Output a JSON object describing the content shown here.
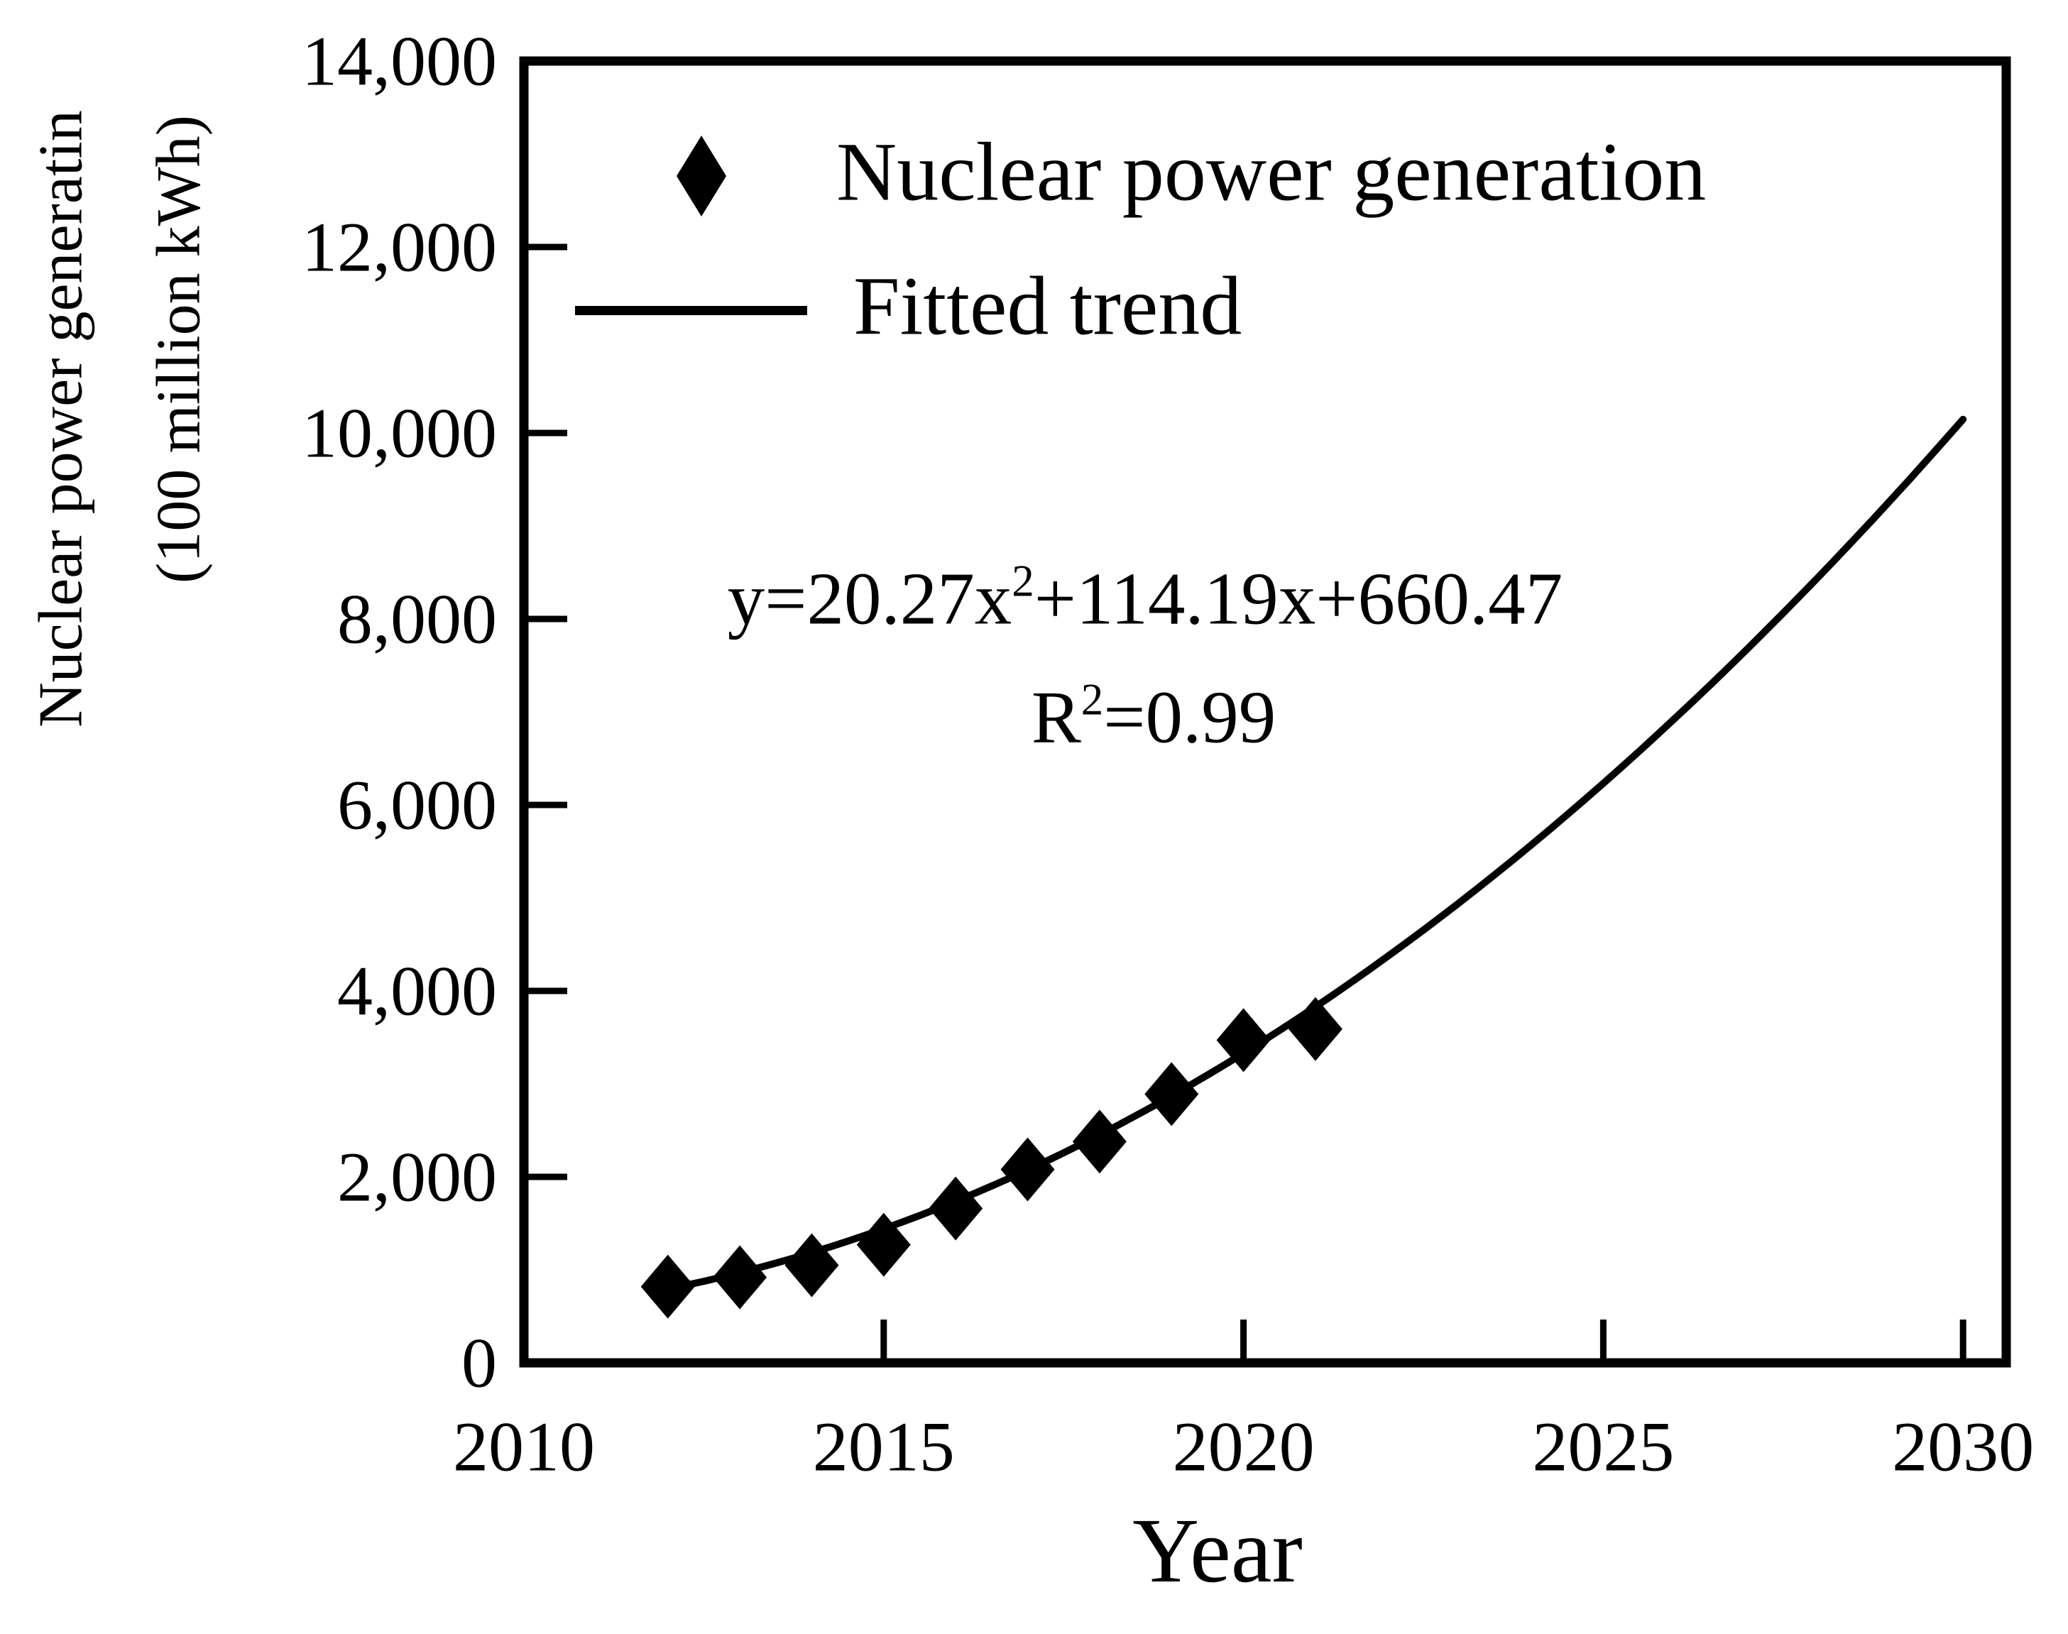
{
  "figure": {
    "background_color": "#ffffff",
    "ink_color": "#000000"
  },
  "legend": {
    "items": [
      {
        "label": "Nuclear power generation",
        "marker": "diamond"
      },
      {
        "label": "Fitted trend",
        "marker": "line"
      }
    ]
  },
  "equation": {
    "line1_base": "y=20.27x",
    "line1_sup": "2",
    "line1_rest": "+114.19x+660.47",
    "line2_base": "R",
    "line2_sup": "2",
    "line2_rest": "=0.99"
  },
  "chart_data": {
    "type": "scatter",
    "title": "",
    "xlabel": "Year",
    "ylabel_line1": "Nuclear power generatin",
    "ylabel_line2": "(100 million kWh)",
    "xlim": [
      2010,
      2030.6
    ],
    "ylim": [
      0,
      14000
    ],
    "xticks": [
      2010,
      2015,
      2020,
      2025,
      2030
    ],
    "yticks": [
      0,
      2000,
      4000,
      6000,
      8000,
      10000,
      12000,
      14000
    ],
    "grid": false,
    "legend_position": "upper-left-inside",
    "series": [
      {
        "name": "Nuclear power generation",
        "type": "scatter",
        "marker": "diamond",
        "color": "#000000",
        "x": [
          2012,
          2013,
          2014,
          2015,
          2016,
          2017,
          2018,
          2019,
          2020,
          2021
        ],
        "y": [
          820,
          920,
          1050,
          1270,
          1660,
          2080,
          2380,
          2890,
          3470,
          3590
        ]
      },
      {
        "name": "Fitted trend",
        "type": "line",
        "color": "#000000",
        "equation_text": "y=20.27x2+114.19x+660.47",
        "r_squared_text": "R2=0.99",
        "fit": {
          "a": 20.27,
          "b": 114.19,
          "c": 660.47,
          "x_base_year": 2011,
          "x_start_year": 2012,
          "x_end_year": 2030
        }
      }
    ]
  }
}
